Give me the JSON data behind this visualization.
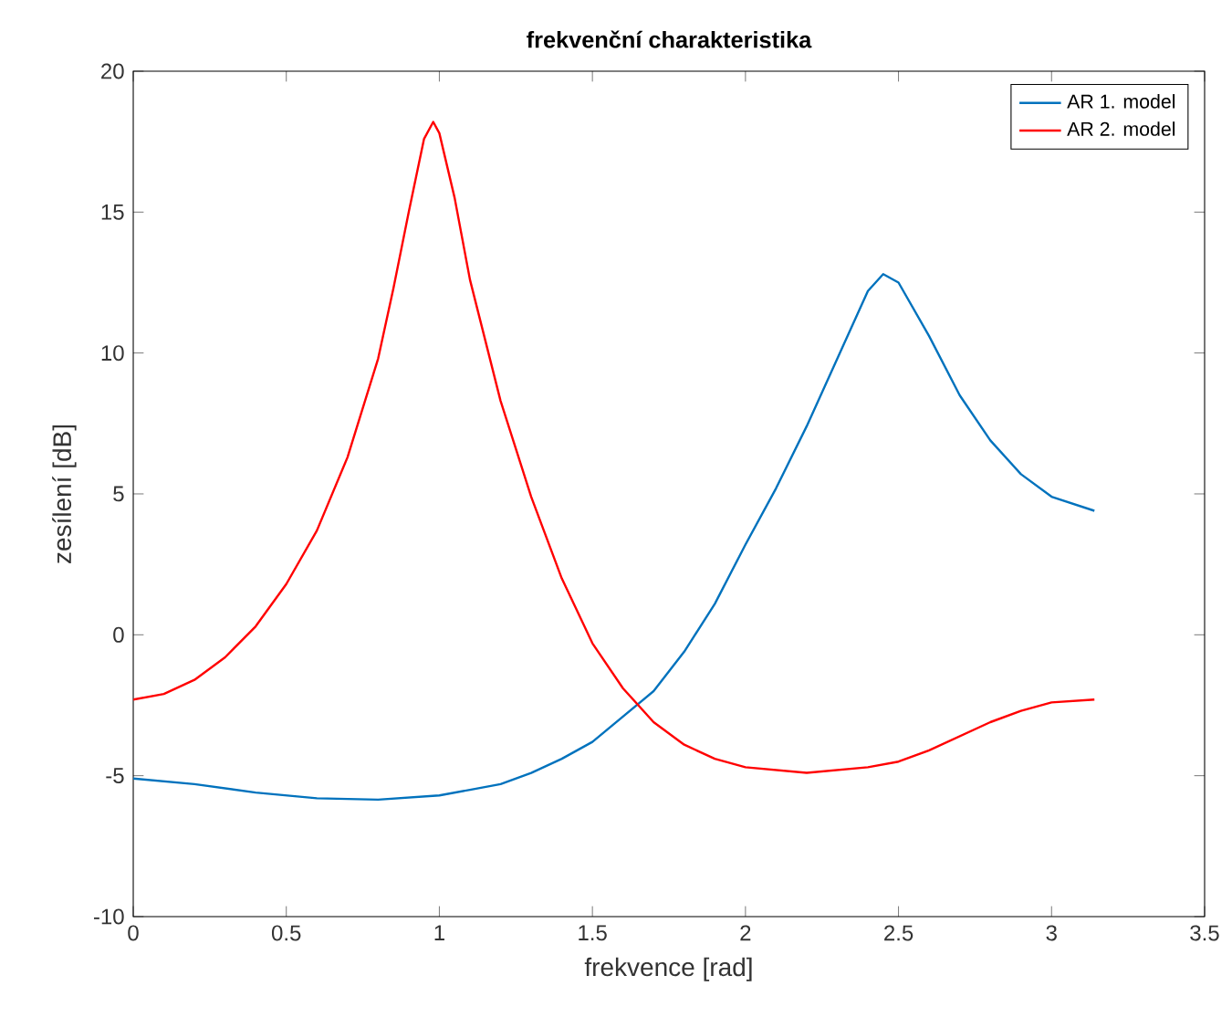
{
  "chart_data": {
    "type": "line",
    "title": "frekvenční charakteristika",
    "xlabel": "frekvence [rad]",
    "ylabel": "zesílení [dB]",
    "xlim": [
      0,
      3.5
    ],
    "ylim": [
      -10,
      20
    ],
    "xticks": [
      0,
      0.5,
      1,
      1.5,
      2,
      2.5,
      3,
      3.5
    ],
    "yticks": [
      -10,
      -5,
      0,
      5,
      10,
      15,
      20
    ],
    "grid": false,
    "legend": "top right",
    "marker": "none",
    "line_style": "solid",
    "series": [
      {
        "name": "AR 1. model",
        "color": "#0072bd",
        "x": [
          0,
          0.2,
          0.4,
          0.6,
          0.8,
          1.0,
          1.1,
          1.2,
          1.3,
          1.4,
          1.5,
          1.6,
          1.7,
          1.8,
          1.9,
          2.0,
          2.1,
          2.2,
          2.3,
          2.4,
          2.45,
          2.5,
          2.6,
          2.7,
          2.8,
          2.9,
          3.0,
          3.14
        ],
        "values": [
          -5.1,
          -5.3,
          -5.6,
          -5.8,
          -5.85,
          -5.7,
          -5.5,
          -5.3,
          -4.9,
          -4.4,
          -3.8,
          -2.9,
          -2.0,
          -0.6,
          1.1,
          3.2,
          5.2,
          7.4,
          9.8,
          12.2,
          12.8,
          12.5,
          10.6,
          8.5,
          6.9,
          5.7,
          4.9,
          4.4
        ]
      },
      {
        "name": "AR 2. model",
        "color": "#ff0000",
        "x": [
          0,
          0.1,
          0.2,
          0.3,
          0.4,
          0.5,
          0.6,
          0.7,
          0.8,
          0.85,
          0.9,
          0.95,
          0.98,
          1.0,
          1.05,
          1.1,
          1.2,
          1.3,
          1.4,
          1.5,
          1.6,
          1.7,
          1.8,
          1.9,
          2.0,
          2.2,
          2.4,
          2.5,
          2.6,
          2.7,
          2.8,
          2.9,
          3.0,
          3.14
        ],
        "values": [
          -2.3,
          -2.1,
          -1.6,
          -0.8,
          0.3,
          1.8,
          3.7,
          6.3,
          9.8,
          12.3,
          15.0,
          17.6,
          18.2,
          17.8,
          15.5,
          12.6,
          8.3,
          4.9,
          2.0,
          -0.3,
          -1.9,
          -3.1,
          -3.9,
          -4.4,
          -4.7,
          -4.9,
          -4.7,
          -4.5,
          -4.1,
          -3.6,
          -3.1,
          -2.7,
          -2.4,
          -2.3
        ]
      }
    ]
  }
}
